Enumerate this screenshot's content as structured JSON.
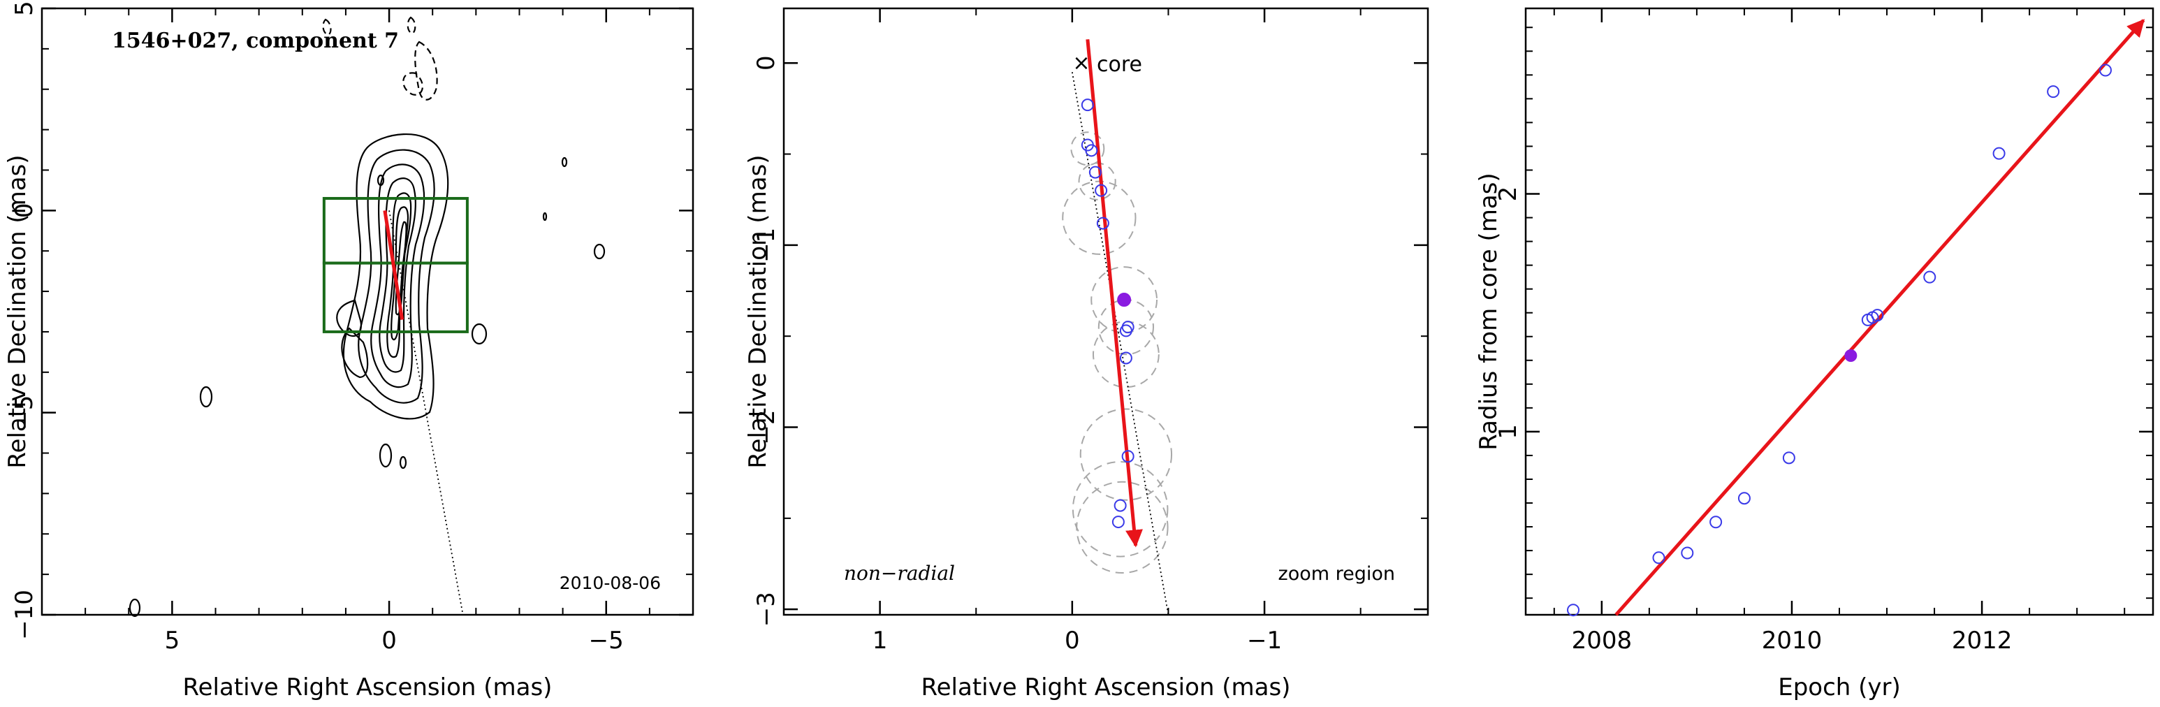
{
  "figure": {
    "panels": 3
  },
  "chart_data": [
    {
      "type": "scatter",
      "subtype": "contour map",
      "title": "1546+027, component 7",
      "annotation": "2010-08-06",
      "xlabel": "Relative Right Ascension (mas)",
      "ylabel": "Relative Declination (mas)",
      "xlim": [
        8,
        -7
      ],
      "ylim": [
        -10,
        5
      ],
      "x_ticks": [
        5,
        0,
        -5
      ],
      "y_ticks": [
        5,
        0,
        -5,
        -10
      ],
      "x_ticklabels": [
        "5",
        "0",
        "−5"
      ],
      "y_ticklabels": [
        "5",
        "0",
        "−5",
        "−10"
      ],
      "motion_arrow": {
        "from": [
          0.1,
          0.0
        ],
        "to": [
          -0.3,
          -2.7
        ],
        "color": "#e8141a"
      },
      "trajectory_line": {
        "from": [
          0.0,
          0.0
        ],
        "to": [
          -1.7,
          -10.0
        ]
      },
      "zoom_boxes": [
        {
          "x": [
            1.5,
            -1.8
          ],
          "y": [
            0.3,
            -1.3
          ]
        },
        {
          "x": [
            1.5,
            -1.8
          ],
          "y": [
            -1.3,
            -3.0
          ]
        }
      ],
      "box_color": "#1a6b1a"
    },
    {
      "type": "scatter",
      "annotation_left": "non−radial",
      "annotation_right": "zoom region",
      "core_label": "core",
      "xlabel": "Relative Right Ascension (mas)",
      "ylabel": "Relative Declination (mas)",
      "xlim": [
        1.5,
        -1.85
      ],
      "ylim": [
        -3.03,
        0.3
      ],
      "x_ticks": [
        1,
        0,
        -1
      ],
      "y_ticks": [
        0,
        -1,
        -2,
        -3
      ],
      "x_ticklabels": [
        "1",
        "0",
        "−1"
      ],
      "y_ticklabels": [
        "0",
        "−1",
        "−2",
        "−3"
      ],
      "points": [
        {
          "x": -0.08,
          "y": -0.23
        },
        {
          "x": -0.08,
          "y": -0.45
        },
        {
          "x": -0.1,
          "y": -0.48
        },
        {
          "x": -0.12,
          "y": -0.6
        },
        {
          "x": -0.15,
          "y": -0.7
        },
        {
          "x": -0.16,
          "y": -0.88
        },
        {
          "x": -0.27,
          "y": -1.3,
          "filled": true
        },
        {
          "x": -0.29,
          "y": -1.45
        },
        {
          "x": -0.28,
          "y": -1.47
        },
        {
          "x": -0.28,
          "y": -1.62
        },
        {
          "x": -0.29,
          "y": -2.16
        },
        {
          "x": -0.25,
          "y": -2.43
        },
        {
          "x": -0.24,
          "y": -2.52
        }
      ],
      "uncertainty_circles": [
        {
          "x": -0.08,
          "y": -0.47,
          "r": 0.09
        },
        {
          "x": -0.13,
          "y": -0.65,
          "r": 0.1
        },
        {
          "x": -0.14,
          "y": -0.85,
          "r": 0.2
        },
        {
          "x": -0.27,
          "y": -1.3,
          "r": 0.18
        },
        {
          "x": -0.28,
          "y": -1.45,
          "r": 0.15
        },
        {
          "x": -0.28,
          "y": -1.6,
          "r": 0.18
        },
        {
          "x": -0.28,
          "y": -2.15,
          "r": 0.25
        },
        {
          "x": -0.25,
          "y": -2.45,
          "r": 0.26
        },
        {
          "x": -0.26,
          "y": -2.55,
          "r": 0.25
        }
      ],
      "motion_arrow": {
        "from": [
          -0.08,
          0.13
        ],
        "to": [
          -0.33,
          -2.65
        ],
        "color": "#e8141a"
      },
      "trajectory_line": {
        "from": [
          0.0,
          -0.05
        ],
        "to": [
          -0.5,
          -3.03
        ]
      },
      "point_color": "#3a3ae8",
      "filled_color": "#8a1be0"
    },
    {
      "type": "scatter",
      "xlabel": "Epoch (yr)",
      "ylabel": "Radius from core (mas)",
      "xlim": [
        2007.2,
        2013.8
      ],
      "ylim": [
        0.23,
        2.78
      ],
      "x_ticks": [
        2008,
        2010,
        2012
      ],
      "y_ticks": [
        1,
        2
      ],
      "x_ticklabels": [
        "2008",
        "2010",
        "2012"
      ],
      "y_ticklabels": [
        "1",
        "2"
      ],
      "points": [
        {
          "x": 2007.7,
          "y": 0.25
        },
        {
          "x": 2008.6,
          "y": 0.47
        },
        {
          "x": 2008.9,
          "y": 0.49
        },
        {
          "x": 2009.2,
          "y": 0.62
        },
        {
          "x": 2009.5,
          "y": 0.72
        },
        {
          "x": 2009.97,
          "y": 0.89
        },
        {
          "x": 2010.62,
          "y": 1.32,
          "filled": true
        },
        {
          "x": 2010.8,
          "y": 1.47
        },
        {
          "x": 2010.85,
          "y": 1.48
        },
        {
          "x": 2010.9,
          "y": 1.49
        },
        {
          "x": 2011.45,
          "y": 1.65
        },
        {
          "x": 2012.18,
          "y": 2.17
        },
        {
          "x": 2012.75,
          "y": 2.43
        },
        {
          "x": 2013.3,
          "y": 2.52
        }
      ],
      "fit_arrow": {
        "from": [
          2008.15,
          0.23
        ],
        "to": [
          2013.7,
          2.73
        ],
        "color": "#e8141a"
      },
      "point_color": "#3a3ae8",
      "filled_color": "#8a1be0"
    }
  ]
}
